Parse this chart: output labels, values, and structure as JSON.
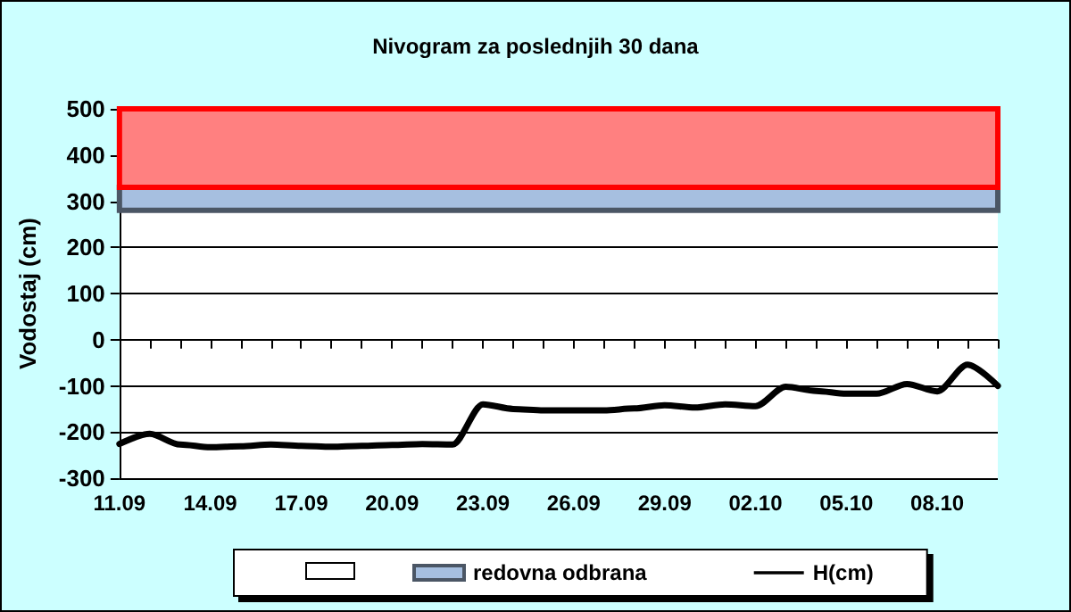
{
  "chart_data": {
    "type": "line",
    "title": "Nivogram za poslednjih 30 dana",
    "ylabel": "Vodostaj (cm)",
    "categories": [
      "11.09",
      null,
      null,
      "14.09",
      null,
      null,
      "17.09",
      null,
      null,
      "20.09",
      null,
      null,
      "23.09",
      null,
      null,
      "26.09",
      null,
      null,
      "29.09",
      null,
      null,
      "02.10",
      null,
      null,
      "05.10",
      null,
      null,
      "08.10",
      null,
      null
    ],
    "series": [
      {
        "name": "H(cm)",
        "color": "#000000",
        "values": [
          -226,
          -204,
          -227,
          -233,
          -231,
          -227,
          -230,
          -232,
          -230,
          -228,
          -226,
          -227,
          -140,
          -150,
          -153,
          -153,
          -153,
          -149,
          -142,
          -147,
          -140,
          -144,
          -102,
          -111,
          -117,
          -117,
          -96,
          -112,
          -54,
          -100
        ]
      }
    ],
    "bands": [
      {
        "axis": "y",
        "from": 280,
        "to": 330,
        "label": "redovna odbrana",
        "color": "#a6bfe0"
      },
      {
        "axis": "y",
        "from": 330,
        "to": 500,
        "label": null,
        "color": "#ff8080"
      }
    ],
    "ylim": [
      -300,
      500
    ],
    "yticks": [
      -300,
      -200,
      -100,
      0,
      100,
      200,
      300,
      400,
      500
    ],
    "grid": "y",
    "legend": "bottom",
    "marker": "none",
    "line_style": "solid"
  }
}
